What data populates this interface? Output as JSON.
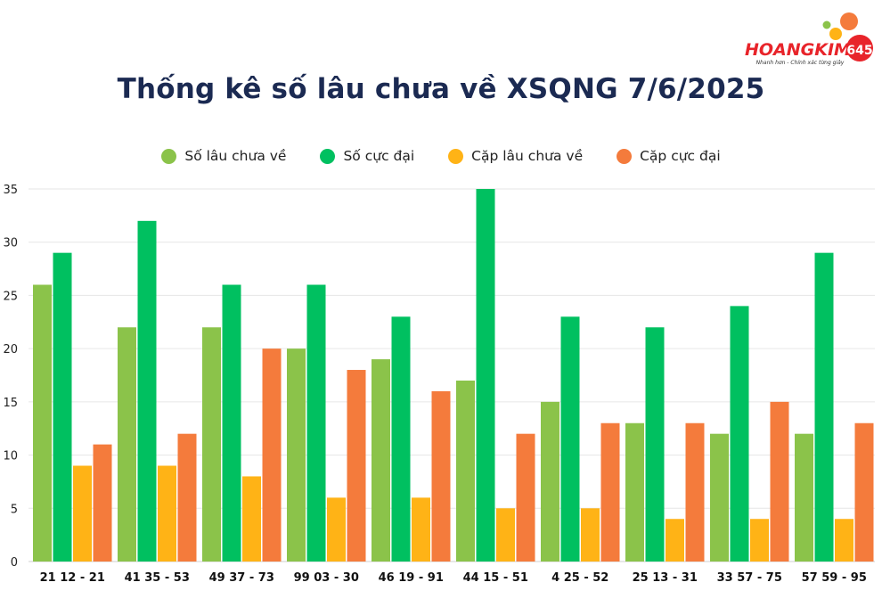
{
  "logo": {
    "brand": "HOANGKIM",
    "badge": "645",
    "tagline": "Nhanh hơn - Chính xác từng giây"
  },
  "chart_data": {
    "type": "bar",
    "title": "Thống kê số lâu chưa về XSQNG 7/6/2025",
    "xlabel": "",
    "ylabel": "",
    "ylim": [
      0,
      35
    ],
    "yticks": [
      0,
      5,
      10,
      15,
      20,
      25,
      30,
      35
    ],
    "grid": true,
    "legend_position": "top",
    "categories": [
      "21 12 - 21",
      "41 35 - 53",
      "49 37 - 73",
      "99 03 - 30",
      "46 19 - 91",
      "44 15 - 51",
      "4 25 - 52",
      "25 13 - 31",
      "33 57 - 75",
      "57 59 - 95"
    ],
    "series": [
      {
        "name": "Số lâu chưa về",
        "color": "#8bc34a",
        "values": [
          26,
          22,
          22,
          20,
          19,
          17,
          15,
          13,
          12,
          12
        ]
      },
      {
        "name": "Số cực đại",
        "color": "#00c060",
        "values": [
          29,
          32,
          26,
          26,
          23,
          35,
          23,
          22,
          24,
          29
        ]
      },
      {
        "name": "Cặp lâu chưa về",
        "color": "#ffb316",
        "values": [
          9,
          9,
          8,
          6,
          6,
          5,
          5,
          4,
          4,
          4
        ]
      },
      {
        "name": "Cặp cực đại",
        "color": "#f47b3c",
        "values": [
          11,
          12,
          20,
          18,
          16,
          12,
          13,
          13,
          15,
          13
        ]
      }
    ]
  }
}
